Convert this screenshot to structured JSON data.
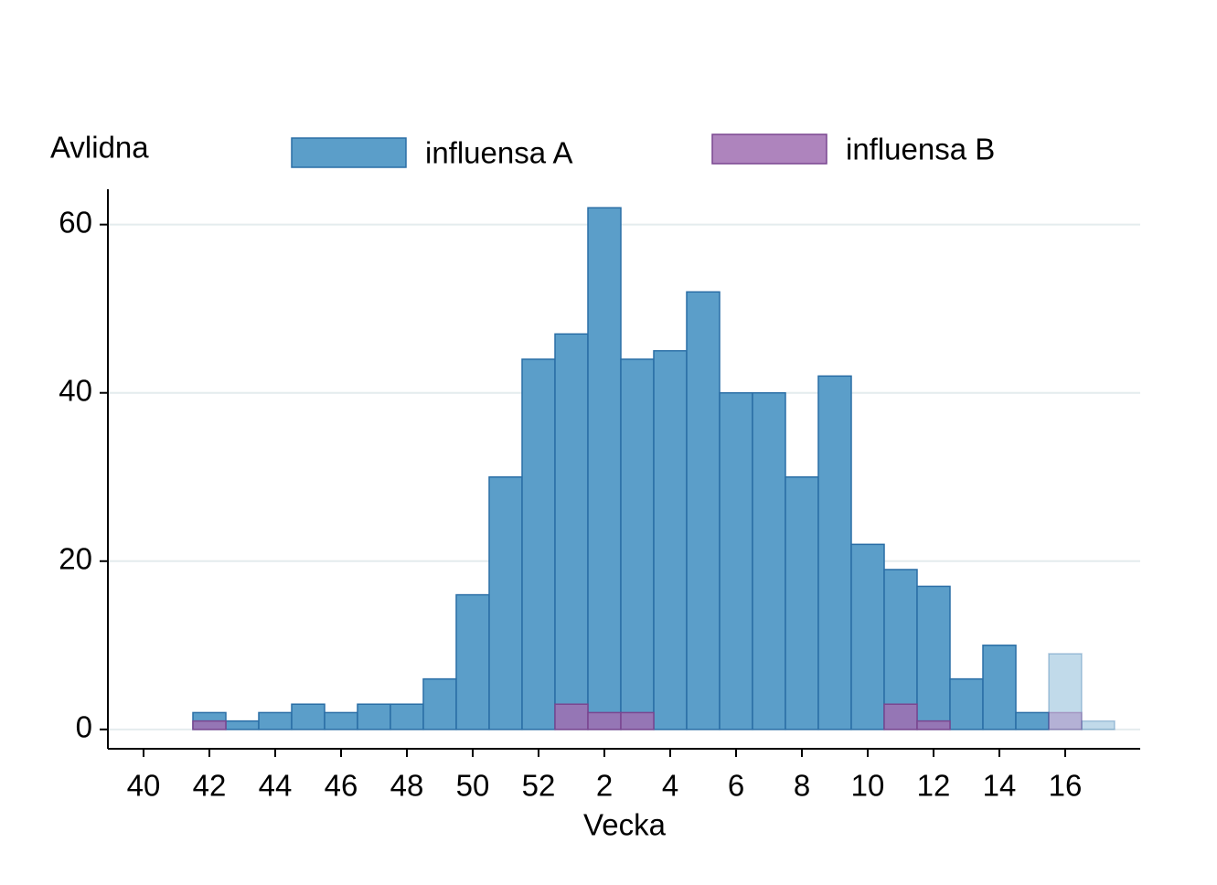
{
  "chart_data": {
    "type": "bar",
    "y_label": "Avlidna",
    "x_label": "Vecka",
    "categories": [
      "40",
      null,
      "42",
      null,
      "44",
      null,
      "46",
      null,
      "48",
      null,
      "50",
      null,
      "52",
      null,
      "2",
      null,
      "4",
      null,
      "6",
      null,
      "8",
      null,
      "10",
      null,
      "12",
      null,
      "14",
      null,
      "16",
      null
    ],
    "series": [
      {
        "name": "influensa A",
        "color": "#5b9ec9",
        "values": [
          null,
          null,
          2,
          1,
          2,
          3,
          2,
          3,
          3,
          6,
          16,
          30,
          44,
          47,
          62,
          44,
          45,
          52,
          40,
          40,
          30,
          42,
          22,
          19,
          17,
          6,
          10,
          2,
          9,
          1
        ]
      },
      {
        "name": "influensa B",
        "color": "#a06eb2",
        "values": [
          null,
          null,
          1,
          null,
          null,
          null,
          null,
          null,
          null,
          null,
          null,
          null,
          null,
          3,
          2,
          2,
          null,
          null,
          null,
          null,
          null,
          null,
          null,
          3,
          1,
          null,
          null,
          null,
          2,
          null
        ]
      }
    ],
    "faded_from": "16",
    "ylim": [
      -2.3,
      64.2
    ],
    "yticks": [
      0,
      20,
      40,
      60
    ],
    "grid": true,
    "legend": "top"
  }
}
